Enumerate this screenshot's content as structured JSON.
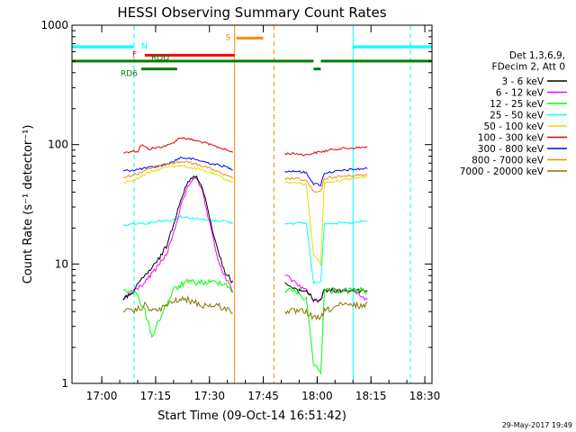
{
  "chart_data": {
    "type": "line",
    "title": "HESSI Observing Summary Count Rates",
    "xlabel": "Start Time (09-Oct-14 16:51:42)",
    "ylabel": "Count Rate (s⁻¹ detector⁻¹)",
    "y_scale": "log",
    "xlim": [
      "16:51:42",
      "18:32:00"
    ],
    "ylim": [
      1,
      1000
    ],
    "x_ticks": [
      "17:00",
      "17:15",
      "17:30",
      "17:45",
      "18:00",
      "18:15",
      "18:30"
    ],
    "y_ticks": [
      "1",
      "10",
      "100",
      "1000"
    ],
    "footer_date": "29-May-2017 19:49",
    "legend": {
      "position": "right",
      "header": [
        "Det 1,3,6,9,",
        "FDecim 2, Att 0"
      ],
      "entries": [
        {
          "label": "3 - 6 keV",
          "color": "#000000"
        },
        {
          "label": "6 - 12 keV",
          "color": "#ff00ff"
        },
        {
          "label": "12 - 25 keV",
          "color": "#00ff00"
        },
        {
          "label": "25 - 50 keV",
          "color": "#00ffff"
        },
        {
          "label": "50 - 100 keV",
          "color": "#e0e000"
        },
        {
          "label": "100 - 300 keV",
          "color": "#e00000"
        },
        {
          "label": "300 - 800 keV",
          "color": "#0000ff"
        },
        {
          "label": "800 - 7000 keV",
          "color": "#ff8800"
        },
        {
          "label": "7000 - 20000 keV",
          "color": "#8b7500"
        }
      ]
    },
    "flag_bars": [
      {
        "label": "N",
        "color": "#00ffff",
        "level": 660,
        "segments": [
          [
            "16:51:42",
            "17:09:00"
          ],
          [
            "18:10:00",
            "18:32:00"
          ]
        ]
      },
      {
        "label": "S",
        "color": "#ff8800",
        "level": 780,
        "segments": [
          [
            "17:37:30",
            "17:45:00"
          ]
        ]
      },
      {
        "label": "F",
        "color": "#ff0000",
        "level": 560,
        "segments": [
          [
            "17:12:00",
            "17:37:00"
          ]
        ]
      },
      {
        "label": "RDD",
        "color": "#008000",
        "level": 500,
        "segments": [
          [
            "16:51:42",
            "17:59:00"
          ],
          [
            "18:01:00",
            "18:32:00"
          ]
        ]
      },
      {
        "label": "RD6",
        "color": "#008000",
        "level": 430,
        "segments": [
          [
            "17:11:00",
            "17:21:00"
          ],
          [
            "17:59:00",
            "18:01:00"
          ]
        ]
      }
    ],
    "vertical_markers": [
      {
        "time": "16:51:42",
        "color": "#00ffff",
        "style": "solid"
      },
      {
        "time": "17:09:00",
        "color": "#00ffff",
        "style": "dashed"
      },
      {
        "time": "17:37:00",
        "color": "#ff8800",
        "style": "solid"
      },
      {
        "time": "17:48:00",
        "color": "#ff8800",
        "style": "dashed"
      },
      {
        "time": "18:10:00",
        "color": "#00ffff",
        "style": "solid"
      },
      {
        "time": "18:26:00",
        "color": "#00ffff",
        "style": "dashed"
      }
    ],
    "series": [
      {
        "name": "100 - 300 keV",
        "color": "#e00000",
        "points": [
          [
            "17:06:00",
            85
          ],
          [
            "17:08:00",
            88
          ],
          [
            "17:10:00",
            88
          ],
          [
            "17:11:00",
            100
          ],
          [
            "17:13:00",
            92
          ],
          [
            "17:16:00",
            95
          ],
          [
            "17:19:00",
            100
          ],
          [
            "17:22:00",
            115
          ],
          [
            "17:25:00",
            110
          ],
          [
            "17:28:00",
            105
          ],
          [
            "17:31:00",
            98
          ],
          [
            "17:34:00",
            92
          ],
          [
            "17:36:30",
            86
          ],
          [
            "17:51:00",
            84
          ],
          [
            "17:54:00",
            84
          ],
          [
            "17:57:00",
            82
          ],
          [
            "17:59:00",
            85
          ],
          [
            "18:02:00",
            88
          ],
          [
            "18:05:00",
            92
          ],
          [
            "18:08:00",
            93
          ],
          [
            "18:11:00",
            94
          ],
          [
            "18:14:00",
            95
          ]
        ]
      },
      {
        "name": "300 - 800 keV",
        "color": "#0000ff",
        "points": [
          [
            "17:06:00",
            60
          ],
          [
            "17:10:00",
            62
          ],
          [
            "17:13:00",
            64
          ],
          [
            "17:16:00",
            66
          ],
          [
            "17:19:00",
            70
          ],
          [
            "17:22:00",
            78
          ],
          [
            "17:26:00",
            75
          ],
          [
            "17:30:00",
            70
          ],
          [
            "17:34:00",
            66
          ],
          [
            "17:36:30",
            62
          ],
          [
            "17:51:00",
            60
          ],
          [
            "17:54:00",
            60
          ],
          [
            "17:57:00",
            58
          ],
          [
            "17:59:00",
            47
          ],
          [
            "18:01:00",
            46
          ],
          [
            "18:02:00",
            58
          ],
          [
            "18:06:00",
            60
          ],
          [
            "18:10:00",
            62
          ],
          [
            "18:14:00",
            63
          ]
        ]
      },
      {
        "name": "800 - 7000 keV",
        "color": "#ff8800",
        "points": [
          [
            "17:06:00",
            53
          ],
          [
            "17:10:00",
            57
          ],
          [
            "17:13:00",
            63
          ],
          [
            "17:16:00",
            66
          ],
          [
            "17:19:00",
            70
          ],
          [
            "17:23:00",
            72
          ],
          [
            "17:27:00",
            68
          ],
          [
            "17:31:00",
            62
          ],
          [
            "17:34:00",
            56
          ],
          [
            "17:36:30",
            52
          ],
          [
            "17:51:00",
            52
          ],
          [
            "17:54:00",
            52
          ],
          [
            "17:57:00",
            50
          ],
          [
            "17:59:00",
            40
          ],
          [
            "18:01:00",
            40
          ],
          [
            "18:02:00",
            52
          ],
          [
            "18:06:00",
            54
          ],
          [
            "18:10:00",
            55
          ],
          [
            "18:14:00",
            56
          ]
        ]
      },
      {
        "name": "50 - 100 keV",
        "color": "#e0e000",
        "points": [
          [
            "17:06:00",
            48
          ],
          [
            "17:10:00",
            52
          ],
          [
            "17:13:00",
            58
          ],
          [
            "17:16:00",
            62
          ],
          [
            "17:19:00",
            66
          ],
          [
            "17:23:00",
            66
          ],
          [
            "17:27:00",
            62
          ],
          [
            "17:31:00",
            57
          ],
          [
            "17:34:00",
            52
          ],
          [
            "17:36:30",
            48
          ],
          [
            "17:51:00",
            48
          ],
          [
            "17:54:00",
            48
          ],
          [
            "17:57:00",
            46
          ],
          [
            "17:59:00",
            12
          ],
          [
            "18:01:00",
            10
          ],
          [
            "18:02:00",
            48
          ],
          [
            "18:06:00",
            50
          ],
          [
            "18:10:00",
            52
          ],
          [
            "18:14:00",
            54
          ]
        ]
      },
      {
        "name": "25 - 50 keV",
        "color": "#00ffff",
        "points": [
          [
            "17:06:00",
            21
          ],
          [
            "17:10:00",
            22
          ],
          [
            "17:13:00",
            22
          ],
          [
            "17:16:00",
            23
          ],
          [
            "17:19:00",
            23
          ],
          [
            "17:22:00",
            25
          ],
          [
            "17:26:00",
            24
          ],
          [
            "17:30:00",
            23
          ],
          [
            "17:34:00",
            23
          ],
          [
            "17:36:30",
            22
          ],
          [
            "17:51:00",
            22
          ],
          [
            "17:54:00",
            22
          ],
          [
            "17:57:00",
            22
          ],
          [
            "17:59:00",
            7
          ],
          [
            "18:01:00",
            7
          ],
          [
            "18:02:00",
            22
          ],
          [
            "18:06:00",
            22
          ],
          [
            "18:10:00",
            22
          ],
          [
            "18:14:00",
            23
          ]
        ]
      },
      {
        "name": "6 - 12 keV",
        "color": "#ff00ff",
        "points": [
          [
            "17:06:00",
            5
          ],
          [
            "17:09:00",
            6
          ],
          [
            "17:12:00",
            7
          ],
          [
            "17:15:00",
            9
          ],
          [
            "17:18:00",
            12
          ],
          [
            "17:20:00",
            18
          ],
          [
            "17:22:00",
            30
          ],
          [
            "17:24:00",
            45
          ],
          [
            "17:26:00",
            55
          ],
          [
            "17:28:00",
            40
          ],
          [
            "17:30:00",
            22
          ],
          [
            "17:32:00",
            12
          ],
          [
            "17:34:00",
            8
          ],
          [
            "17:36:30",
            6
          ],
          [
            "17:51:00",
            8
          ],
          [
            "17:54:00",
            7
          ],
          [
            "17:57:00",
            6
          ],
          [
            "17:59:00",
            5
          ],
          [
            "18:01:00",
            5
          ],
          [
            "18:02:00",
            6
          ],
          [
            "18:06:00",
            6
          ],
          [
            "18:10:00",
            6
          ],
          [
            "18:14:00",
            5
          ]
        ]
      },
      {
        "name": "3 - 6 keV",
        "color": "#000000",
        "points": [
          [
            "17:06:00",
            5
          ],
          [
            "17:09:00",
            6
          ],
          [
            "17:12:00",
            8
          ],
          [
            "17:15:00",
            10
          ],
          [
            "17:18:00",
            14
          ],
          [
            "17:20:00",
            22
          ],
          [
            "17:22:00",
            35
          ],
          [
            "17:24:00",
            48
          ],
          [
            "17:26:00",
            55
          ],
          [
            "17:28:00",
            45
          ],
          [
            "17:30:00",
            25
          ],
          [
            "17:32:00",
            14
          ],
          [
            "17:34:00",
            9
          ],
          [
            "17:36:30",
            7
          ],
          [
            "17:51:00",
            7
          ],
          [
            "17:54:00",
            6
          ],
          [
            "17:57:00",
            6
          ],
          [
            "17:59:00",
            5
          ],
          [
            "18:01:00",
            5
          ],
          [
            "18:02:00",
            6
          ],
          [
            "18:06:00",
            6
          ],
          [
            "18:10:00",
            6
          ],
          [
            "18:14:00",
            6
          ]
        ]
      },
      {
        "name": "12 - 25 keV",
        "color": "#00ff00",
        "points": [
          [
            "17:06:00",
            6
          ],
          [
            "17:09:00",
            6
          ],
          [
            "17:12:00",
            4
          ],
          [
            "17:14:00",
            2.5
          ],
          [
            "17:17:00",
            4
          ],
          [
            "17:20:00",
            6
          ],
          [
            "17:23:00",
            7
          ],
          [
            "17:27:00",
            7
          ],
          [
            "17:31:00",
            7
          ],
          [
            "17:34:00",
            7
          ],
          [
            "17:36:30",
            6
          ],
          [
            "17:51:00",
            6
          ],
          [
            "17:54:00",
            6
          ],
          [
            "17:57:00",
            5
          ],
          [
            "17:59:00",
            1.5
          ],
          [
            "18:01:00",
            1.2
          ],
          [
            "18:02:00",
            6
          ],
          [
            "18:06:00",
            6
          ],
          [
            "18:10:00",
            6
          ],
          [
            "18:14:00",
            6
          ]
        ]
      },
      {
        "name": "7000 - 20000 keV",
        "color": "#8b7500",
        "points": [
          [
            "17:06:00",
            4
          ],
          [
            "17:09:00",
            4
          ],
          [
            "17:12:00",
            4.5
          ],
          [
            "17:15:00",
            4
          ],
          [
            "17:18:00",
            4.5
          ],
          [
            "17:21:00",
            5
          ],
          [
            "17:24:00",
            5
          ],
          [
            "17:28:00",
            4.5
          ],
          [
            "17:32:00",
            4.5
          ],
          [
            "17:36:30",
            4
          ],
          [
            "17:51:00",
            4
          ],
          [
            "17:54:00",
            4
          ],
          [
            "17:57:00",
            4
          ],
          [
            "17:59:00",
            3.5
          ],
          [
            "18:01:00",
            3.5
          ],
          [
            "18:02:00",
            4
          ],
          [
            "18:06:00",
            4.5
          ],
          [
            "18:10:00",
            4.5
          ],
          [
            "18:14:00",
            4.5
          ]
        ]
      }
    ]
  }
}
